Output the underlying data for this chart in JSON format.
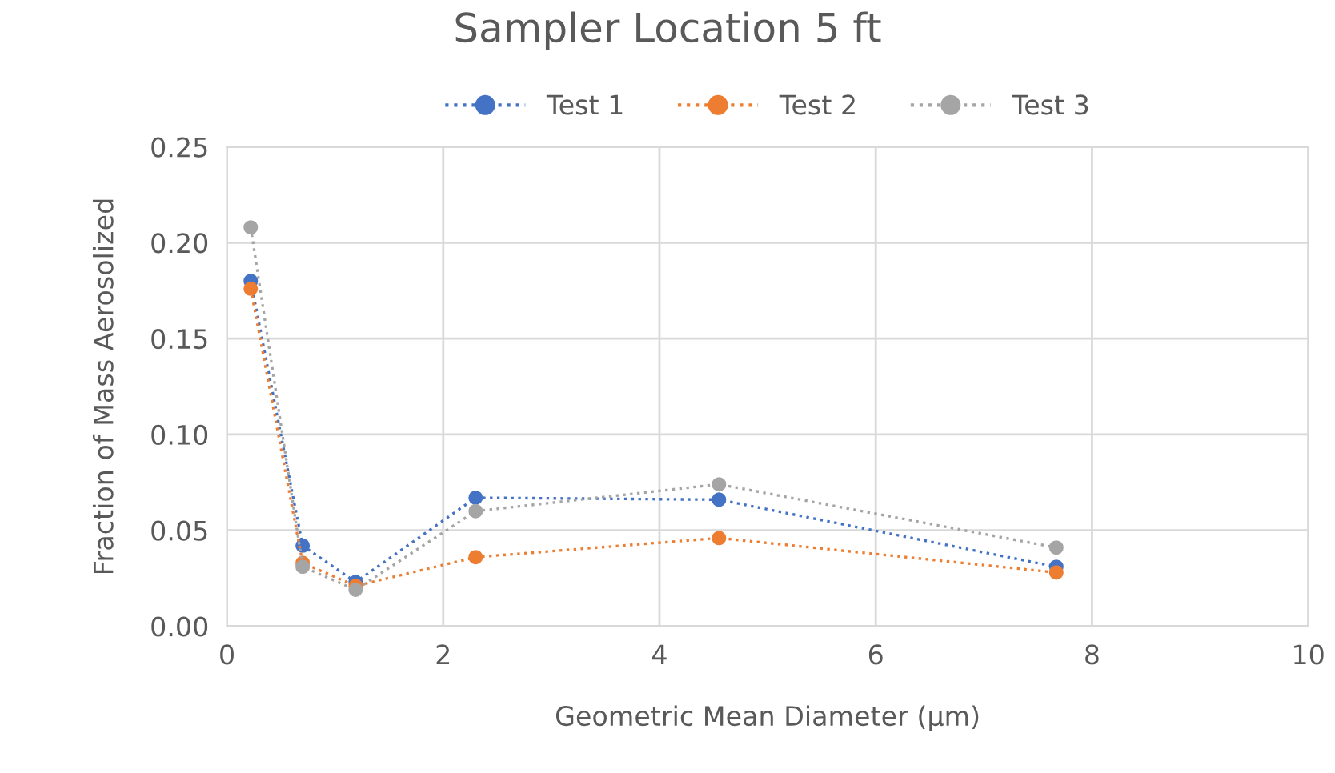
{
  "chart_data": {
    "type": "line",
    "title": "Sampler Location 5 ft",
    "xlabel": "Geometric Mean Diameter (µm)",
    "ylabel": "Fraction of Mass Aerosolized",
    "x": [
      0.22,
      0.7,
      1.19,
      2.3,
      4.55,
      7.67
    ],
    "series": [
      {
        "name": "Test 1",
        "color": "#4472c4",
        "values": [
          0.18,
          0.042,
          0.023,
          0.067,
          0.066,
          0.031
        ]
      },
      {
        "name": "Test 2",
        "color": "#ed7d31",
        "values": [
          0.176,
          0.033,
          0.021,
          0.036,
          0.046,
          0.028
        ]
      },
      {
        "name": "Test 3",
        "color": "#a5a5a5",
        "values": [
          0.208,
          0.031,
          0.019,
          0.06,
          0.074,
          0.041
        ]
      }
    ],
    "xlim": [
      0,
      10
    ],
    "xticks": [
      0,
      2,
      4,
      6,
      8,
      10
    ],
    "ylim": [
      0,
      0.25
    ],
    "yticks": [
      {
        "value": 0,
        "label": "0.00"
      },
      {
        "value": 0.05,
        "label": "0.05"
      },
      {
        "value": 0.1,
        "label": "0.10"
      },
      {
        "value": 0.15,
        "label": "0.15"
      },
      {
        "value": 0.2,
        "label": "0.20"
      },
      {
        "value": 0.25,
        "label": "0.25"
      }
    ],
    "grid": true,
    "legend": "top",
    "marker": "circle",
    "line_style": "dotted"
  }
}
